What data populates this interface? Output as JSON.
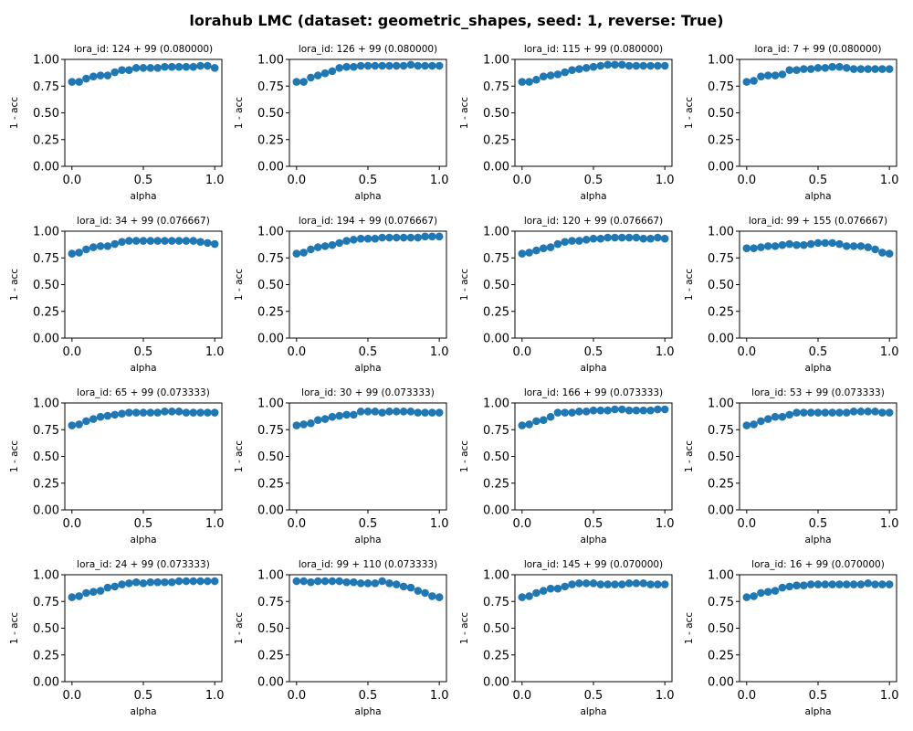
{
  "figure": {
    "title": "lorahub LMC (dataset: geometric_shapes, seed: 1, reverse: True)"
  },
  "colors": {
    "marker": "#1f77b4",
    "axis": "#000000",
    "background": "#ffffff"
  },
  "chart_data": [
    {
      "type": "scatter",
      "title": "lora_id: 124 + 99 (0.080000)",
      "xlabel": "alpha",
      "ylabel": "1 - acc",
      "xlim": [
        0,
        1
      ],
      "ylim": [
        0,
        1
      ],
      "xticks": [
        "0.0",
        "0.5",
        "1.0"
      ],
      "yticks": [
        "0.00",
        "0.25",
        "0.50",
        "0.75",
        "1.00"
      ],
      "x": [
        0,
        0.05,
        0.1,
        0.15,
        0.2,
        0.25,
        0.3,
        0.35,
        0.4,
        0.45,
        0.5,
        0.55,
        0.6,
        0.65,
        0.7,
        0.75,
        0.8,
        0.85,
        0.9,
        0.95,
        1.0
      ],
      "y": [
        0.79,
        0.79,
        0.82,
        0.84,
        0.85,
        0.85,
        0.88,
        0.9,
        0.9,
        0.92,
        0.92,
        0.92,
        0.92,
        0.93,
        0.93,
        0.93,
        0.93,
        0.93,
        0.94,
        0.94,
        0.92
      ]
    },
    {
      "type": "scatter",
      "title": "lora_id: 126 + 99 (0.080000)",
      "xlabel": "alpha",
      "ylabel": "1 - acc",
      "xlim": [
        0,
        1
      ],
      "ylim": [
        0,
        1
      ],
      "xticks": [
        "0.0",
        "0.5",
        "1.0"
      ],
      "yticks": [
        "0.00",
        "0.25",
        "0.50",
        "0.75",
        "1.00"
      ],
      "x": [
        0,
        0.05,
        0.1,
        0.15,
        0.2,
        0.25,
        0.3,
        0.35,
        0.4,
        0.45,
        0.5,
        0.55,
        0.6,
        0.65,
        0.7,
        0.75,
        0.8,
        0.85,
        0.9,
        0.95,
        1.0
      ],
      "y": [
        0.79,
        0.79,
        0.83,
        0.85,
        0.87,
        0.89,
        0.92,
        0.93,
        0.93,
        0.94,
        0.94,
        0.94,
        0.94,
        0.94,
        0.94,
        0.94,
        0.95,
        0.94,
        0.94,
        0.94,
        0.94
      ]
    },
    {
      "type": "scatter",
      "title": "lora_id: 115 + 99 (0.080000)",
      "xlabel": "alpha",
      "ylabel": "1 - acc",
      "xlim": [
        0,
        1
      ],
      "ylim": [
        0,
        1
      ],
      "xticks": [
        "0.0",
        "0.5",
        "1.0"
      ],
      "yticks": [
        "0.00",
        "0.25",
        "0.50",
        "0.75",
        "1.00"
      ],
      "x": [
        0,
        0.05,
        0.1,
        0.15,
        0.2,
        0.25,
        0.3,
        0.35,
        0.4,
        0.45,
        0.5,
        0.55,
        0.6,
        0.65,
        0.7,
        0.75,
        0.8,
        0.85,
        0.9,
        0.95,
        1.0
      ],
      "y": [
        0.79,
        0.79,
        0.81,
        0.84,
        0.85,
        0.86,
        0.88,
        0.9,
        0.91,
        0.92,
        0.93,
        0.94,
        0.95,
        0.95,
        0.95,
        0.94,
        0.94,
        0.94,
        0.94,
        0.94,
        0.94
      ]
    },
    {
      "type": "scatter",
      "title": "lora_id: 7 + 99 (0.080000)",
      "xlabel": "alpha",
      "ylabel": "1 - acc",
      "xlim": [
        0,
        1
      ],
      "ylim": [
        0,
        1
      ],
      "xticks": [
        "0.0",
        "0.5",
        "1.0"
      ],
      "yticks": [
        "0.00",
        "0.25",
        "0.50",
        "0.75",
        "1.00"
      ],
      "x": [
        0,
        0.05,
        0.1,
        0.15,
        0.2,
        0.25,
        0.3,
        0.35,
        0.4,
        0.45,
        0.5,
        0.55,
        0.6,
        0.65,
        0.7,
        0.75,
        0.8,
        0.85,
        0.9,
        0.95,
        1.0
      ],
      "y": [
        0.79,
        0.8,
        0.84,
        0.85,
        0.85,
        0.86,
        0.9,
        0.9,
        0.91,
        0.91,
        0.92,
        0.92,
        0.93,
        0.93,
        0.92,
        0.91,
        0.91,
        0.91,
        0.91,
        0.91,
        0.91
      ]
    },
    {
      "type": "scatter",
      "title": "lora_id: 34 + 99 (0.076667)",
      "xlabel": "alpha",
      "ylabel": "1 - acc",
      "xlim": [
        0,
        1
      ],
      "ylim": [
        0,
        1
      ],
      "xticks": [
        "0.0",
        "0.5",
        "1.0"
      ],
      "yticks": [
        "0.00",
        "0.25",
        "0.50",
        "0.75",
        "1.00"
      ],
      "x": [
        0,
        0.05,
        0.1,
        0.15,
        0.2,
        0.25,
        0.3,
        0.35,
        0.4,
        0.45,
        0.5,
        0.55,
        0.6,
        0.65,
        0.7,
        0.75,
        0.8,
        0.85,
        0.9,
        0.95,
        1.0
      ],
      "y": [
        0.79,
        0.8,
        0.83,
        0.85,
        0.86,
        0.86,
        0.88,
        0.9,
        0.91,
        0.91,
        0.91,
        0.91,
        0.91,
        0.91,
        0.91,
        0.91,
        0.91,
        0.91,
        0.9,
        0.89,
        0.88
      ]
    },
    {
      "type": "scatter",
      "title": "lora_id: 194 + 99 (0.076667)",
      "xlabel": "alpha",
      "ylabel": "1 - acc",
      "xlim": [
        0,
        1
      ],
      "ylim": [
        0,
        1
      ],
      "xticks": [
        "0.0",
        "0.5",
        "1.0"
      ],
      "yticks": [
        "0.00",
        "0.25",
        "0.50",
        "0.75",
        "1.00"
      ],
      "x": [
        0,
        0.05,
        0.1,
        0.15,
        0.2,
        0.25,
        0.3,
        0.35,
        0.4,
        0.45,
        0.5,
        0.55,
        0.6,
        0.65,
        0.7,
        0.75,
        0.8,
        0.85,
        0.9,
        0.95,
        1.0
      ],
      "y": [
        0.79,
        0.8,
        0.83,
        0.85,
        0.86,
        0.87,
        0.89,
        0.91,
        0.92,
        0.93,
        0.93,
        0.93,
        0.94,
        0.94,
        0.94,
        0.94,
        0.94,
        0.94,
        0.95,
        0.95,
        0.95
      ]
    },
    {
      "type": "scatter",
      "title": "lora_id: 120 + 99 (0.076667)",
      "xlabel": "alpha",
      "ylabel": "1 - acc",
      "xlim": [
        0,
        1
      ],
      "ylim": [
        0,
        1
      ],
      "xticks": [
        "0.0",
        "0.5",
        "1.0"
      ],
      "yticks": [
        "0.00",
        "0.25",
        "0.50",
        "0.75",
        "1.00"
      ],
      "x": [
        0,
        0.05,
        0.1,
        0.15,
        0.2,
        0.25,
        0.3,
        0.35,
        0.4,
        0.45,
        0.5,
        0.55,
        0.6,
        0.65,
        0.7,
        0.75,
        0.8,
        0.85,
        0.9,
        0.95,
        1.0
      ],
      "y": [
        0.79,
        0.8,
        0.82,
        0.84,
        0.85,
        0.88,
        0.9,
        0.91,
        0.91,
        0.92,
        0.93,
        0.93,
        0.94,
        0.94,
        0.94,
        0.94,
        0.94,
        0.93,
        0.93,
        0.94,
        0.93
      ]
    },
    {
      "type": "scatter",
      "title": "lora_id: 99 + 155 (0.076667)",
      "xlabel": "alpha",
      "ylabel": "1 - acc",
      "xlim": [
        0,
        1
      ],
      "ylim": [
        0,
        1
      ],
      "xticks": [
        "0.0",
        "0.5",
        "1.0"
      ],
      "yticks": [
        "0.00",
        "0.25",
        "0.50",
        "0.75",
        "1.00"
      ],
      "x": [
        0,
        0.05,
        0.1,
        0.15,
        0.2,
        0.25,
        0.3,
        0.35,
        0.4,
        0.45,
        0.5,
        0.55,
        0.6,
        0.65,
        0.7,
        0.75,
        0.8,
        0.85,
        0.9,
        0.95,
        1.0
      ],
      "y": [
        0.84,
        0.84,
        0.85,
        0.86,
        0.86,
        0.87,
        0.88,
        0.87,
        0.87,
        0.88,
        0.89,
        0.89,
        0.89,
        0.88,
        0.86,
        0.86,
        0.86,
        0.85,
        0.83,
        0.8,
        0.79
      ]
    },
    {
      "type": "scatter",
      "title": "lora_id: 65 + 99 (0.073333)",
      "xlabel": "alpha",
      "ylabel": "1 - acc",
      "xlim": [
        0,
        1
      ],
      "ylim": [
        0,
        1
      ],
      "xticks": [
        "0.0",
        "0.5",
        "1.0"
      ],
      "yticks": [
        "0.00",
        "0.25",
        "0.50",
        "0.75",
        "1.00"
      ],
      "x": [
        0,
        0.05,
        0.1,
        0.15,
        0.2,
        0.25,
        0.3,
        0.35,
        0.4,
        0.45,
        0.5,
        0.55,
        0.6,
        0.65,
        0.7,
        0.75,
        0.8,
        0.85,
        0.9,
        0.95,
        1.0
      ],
      "y": [
        0.79,
        0.8,
        0.83,
        0.85,
        0.87,
        0.88,
        0.89,
        0.9,
        0.91,
        0.91,
        0.91,
        0.91,
        0.91,
        0.92,
        0.92,
        0.92,
        0.91,
        0.91,
        0.91,
        0.91,
        0.91
      ]
    },
    {
      "type": "scatter",
      "title": "lora_id: 30 + 99 (0.073333)",
      "xlabel": "alpha",
      "ylabel": "1 - acc",
      "xlim": [
        0,
        1
      ],
      "ylim": [
        0,
        1
      ],
      "xticks": [
        "0.0",
        "0.5",
        "1.0"
      ],
      "yticks": [
        "0.00",
        "0.25",
        "0.50",
        "0.75",
        "1.00"
      ],
      "x": [
        0,
        0.05,
        0.1,
        0.15,
        0.2,
        0.25,
        0.3,
        0.35,
        0.4,
        0.45,
        0.5,
        0.55,
        0.6,
        0.65,
        0.7,
        0.75,
        0.8,
        0.85,
        0.9,
        0.95,
        1.0
      ],
      "y": [
        0.79,
        0.8,
        0.81,
        0.84,
        0.85,
        0.87,
        0.88,
        0.89,
        0.89,
        0.92,
        0.92,
        0.92,
        0.91,
        0.92,
        0.92,
        0.92,
        0.92,
        0.91,
        0.91,
        0.91,
        0.91
      ]
    },
    {
      "type": "scatter",
      "title": "lora_id: 166 + 99 (0.073333)",
      "xlabel": "alpha",
      "ylabel": "1 - acc",
      "xlim": [
        0,
        1
      ],
      "ylim": [
        0,
        1
      ],
      "xticks": [
        "0.0",
        "0.5",
        "1.0"
      ],
      "yticks": [
        "0.00",
        "0.25",
        "0.50",
        "0.75",
        "1.00"
      ],
      "x": [
        0,
        0.05,
        0.1,
        0.15,
        0.2,
        0.25,
        0.3,
        0.35,
        0.4,
        0.45,
        0.5,
        0.55,
        0.6,
        0.65,
        0.7,
        0.75,
        0.8,
        0.85,
        0.9,
        0.95,
        1.0
      ],
      "y": [
        0.79,
        0.8,
        0.83,
        0.84,
        0.87,
        0.91,
        0.91,
        0.91,
        0.92,
        0.92,
        0.93,
        0.93,
        0.93,
        0.94,
        0.94,
        0.93,
        0.93,
        0.93,
        0.93,
        0.94,
        0.94
      ]
    },
    {
      "type": "scatter",
      "title": "lora_id: 53 + 99 (0.073333)",
      "xlabel": "alpha",
      "ylabel": "1 - acc",
      "xlim": [
        0,
        1
      ],
      "ylim": [
        0,
        1
      ],
      "xticks": [
        "0.0",
        "0.5",
        "1.0"
      ],
      "yticks": [
        "0.00",
        "0.25",
        "0.50",
        "0.75",
        "1.00"
      ],
      "x": [
        0,
        0.05,
        0.1,
        0.15,
        0.2,
        0.25,
        0.3,
        0.35,
        0.4,
        0.45,
        0.5,
        0.55,
        0.6,
        0.65,
        0.7,
        0.75,
        0.8,
        0.85,
        0.9,
        0.95,
        1.0
      ],
      "y": [
        0.79,
        0.8,
        0.83,
        0.85,
        0.87,
        0.87,
        0.89,
        0.91,
        0.91,
        0.91,
        0.91,
        0.91,
        0.91,
        0.91,
        0.91,
        0.92,
        0.92,
        0.92,
        0.92,
        0.91,
        0.91
      ]
    },
    {
      "type": "scatter",
      "title": "lora_id: 24 + 99 (0.073333)",
      "xlabel": "alpha",
      "ylabel": "1 - acc",
      "xlim": [
        0,
        1
      ],
      "ylim": [
        0,
        1
      ],
      "xticks": [
        "0.0",
        "0.5",
        "1.0"
      ],
      "yticks": [
        "0.00",
        "0.25",
        "0.50",
        "0.75",
        "1.00"
      ],
      "x": [
        0,
        0.05,
        0.1,
        0.15,
        0.2,
        0.25,
        0.3,
        0.35,
        0.4,
        0.45,
        0.5,
        0.55,
        0.6,
        0.65,
        0.7,
        0.75,
        0.8,
        0.85,
        0.9,
        0.95,
        1.0
      ],
      "y": [
        0.79,
        0.8,
        0.83,
        0.84,
        0.85,
        0.88,
        0.89,
        0.91,
        0.92,
        0.93,
        0.92,
        0.93,
        0.93,
        0.93,
        0.93,
        0.94,
        0.94,
        0.94,
        0.94,
        0.94,
        0.94
      ]
    },
    {
      "type": "scatter",
      "title": "lora_id: 99 + 110 (0.073333)",
      "xlabel": "alpha",
      "ylabel": "1 - acc",
      "xlim": [
        0,
        1
      ],
      "ylim": [
        0,
        1
      ],
      "xticks": [
        "0.0",
        "0.5",
        "1.0"
      ],
      "yticks": [
        "0.00",
        "0.25",
        "0.50",
        "0.75",
        "1.00"
      ],
      "x": [
        0,
        0.05,
        0.1,
        0.15,
        0.2,
        0.25,
        0.3,
        0.35,
        0.4,
        0.45,
        0.5,
        0.55,
        0.6,
        0.65,
        0.7,
        0.75,
        0.8,
        0.85,
        0.9,
        0.95,
        1.0
      ],
      "y": [
        0.94,
        0.94,
        0.93,
        0.94,
        0.94,
        0.94,
        0.94,
        0.93,
        0.93,
        0.92,
        0.92,
        0.92,
        0.94,
        0.92,
        0.91,
        0.89,
        0.88,
        0.85,
        0.83,
        0.8,
        0.79
      ]
    },
    {
      "type": "scatter",
      "title": "lora_id: 145 + 99 (0.070000)",
      "xlabel": "alpha",
      "ylabel": "1 - acc",
      "xlim": [
        0,
        1
      ],
      "ylim": [
        0,
        1
      ],
      "xticks": [
        "0.0",
        "0.5",
        "1.0"
      ],
      "yticks": [
        "0.00",
        "0.25",
        "0.50",
        "0.75",
        "1.00"
      ],
      "x": [
        0,
        0.05,
        0.1,
        0.15,
        0.2,
        0.25,
        0.3,
        0.35,
        0.4,
        0.45,
        0.5,
        0.55,
        0.6,
        0.65,
        0.7,
        0.75,
        0.8,
        0.85,
        0.9,
        0.95,
        1.0
      ],
      "y": [
        0.79,
        0.8,
        0.83,
        0.85,
        0.87,
        0.87,
        0.89,
        0.91,
        0.92,
        0.92,
        0.92,
        0.91,
        0.91,
        0.91,
        0.91,
        0.92,
        0.92,
        0.92,
        0.91,
        0.91,
        0.91
      ]
    },
    {
      "type": "scatter",
      "title": "lora_id: 16 + 99 (0.070000)",
      "xlabel": "alpha",
      "ylabel": "1 - acc",
      "xlim": [
        0,
        1
      ],
      "ylim": [
        0,
        1
      ],
      "xticks": [
        "0.0",
        "0.5",
        "1.0"
      ],
      "yticks": [
        "0.00",
        "0.25",
        "0.50",
        "0.75",
        "1.00"
      ],
      "x": [
        0,
        0.05,
        0.1,
        0.15,
        0.2,
        0.25,
        0.3,
        0.35,
        0.4,
        0.45,
        0.5,
        0.55,
        0.6,
        0.65,
        0.7,
        0.75,
        0.8,
        0.85,
        0.9,
        0.95,
        1.0
      ],
      "y": [
        0.79,
        0.8,
        0.83,
        0.84,
        0.85,
        0.88,
        0.89,
        0.9,
        0.9,
        0.91,
        0.91,
        0.91,
        0.91,
        0.91,
        0.91,
        0.91,
        0.91,
        0.92,
        0.91,
        0.91,
        0.91
      ]
    }
  ]
}
